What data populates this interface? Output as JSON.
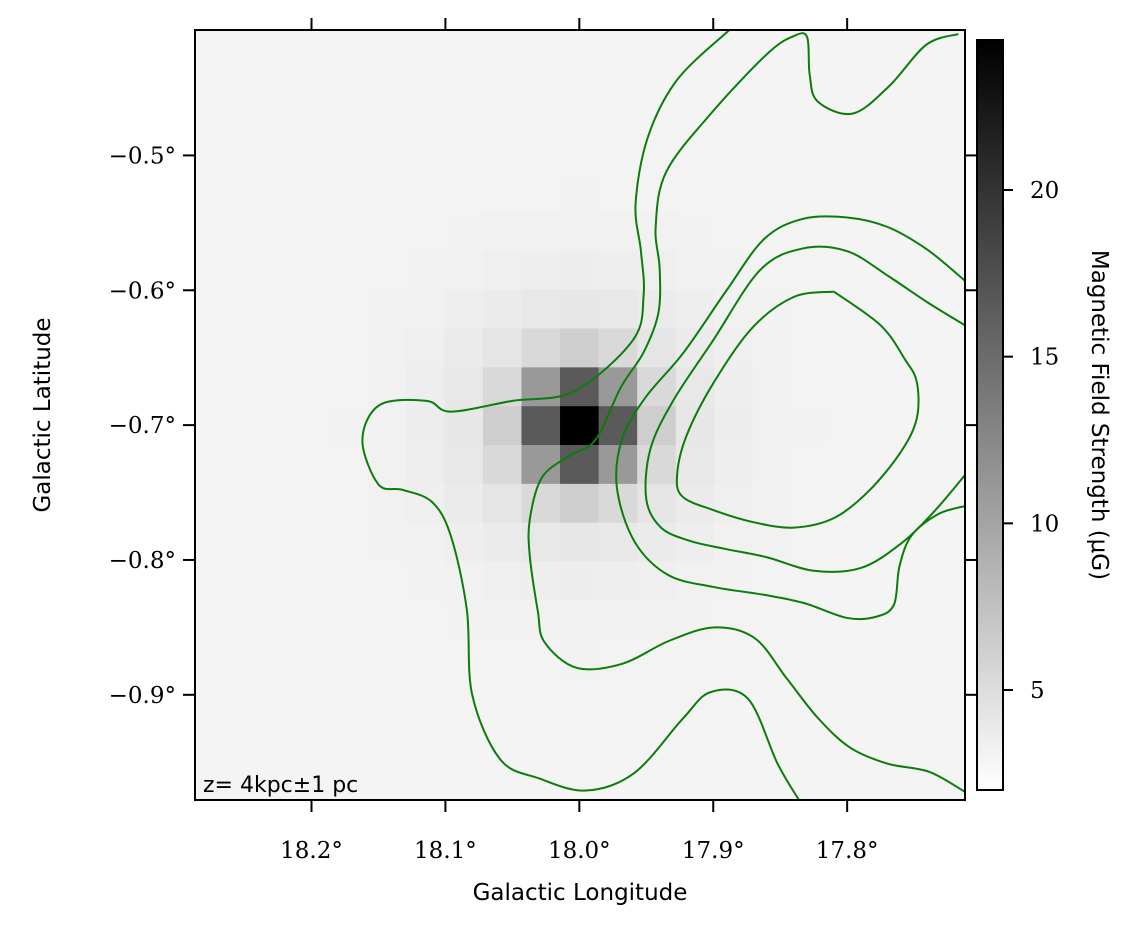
{
  "chart_data": {
    "type": "heatmap",
    "title": "",
    "xlabel": "Galactic Longitude",
    "ylabel": "Galactic Latitude",
    "colorbar_label": "Magnetic Field Strength (μG)",
    "annotation": "z= 4kpc±1 pc",
    "x_ticks": [
      {
        "value": 18.2,
        "label": "18.2°"
      },
      {
        "value": 18.1,
        "label": "18.1°"
      },
      {
        "value": 18.0,
        "label": "18.0°"
      },
      {
        "value": 17.9,
        "label": "17.9°"
      },
      {
        "value": 17.8,
        "label": "17.8°"
      }
    ],
    "y_ticks": [
      {
        "value": -0.5,
        "label": "−0.5°"
      },
      {
        "value": -0.6,
        "label": "−0.6°"
      },
      {
        "value": -0.7,
        "label": "−0.7°"
      },
      {
        "value": -0.8,
        "label": "−0.8°"
      },
      {
        "value": -0.9,
        "label": "−0.9°"
      }
    ],
    "xlim": [
      18.287,
      17.712
    ],
    "ylim": [
      -0.978,
      -0.407
    ],
    "colorbar": {
      "colormap": "gray_r",
      "range": [
        2,
        24.5
      ],
      "ticks": [
        {
          "value": 5,
          "label": "5"
        },
        {
          "value": 10,
          "label": "10"
        },
        {
          "value": 15,
          "label": "15"
        },
        {
          "value": 20,
          "label": "20"
        }
      ]
    },
    "heatmap": {
      "pixel_size_deg": 0.0288,
      "center": {
        "l": 18.0,
        "b": -0.7
      },
      "background": 3.0,
      "peak": 24.5,
      "colors": {
        "contour": "#0a7d0a"
      }
    },
    "contours": [
      {
        "name": "",
        "points": [
          [
            17.888,
            -0.407
          ],
          [
            17.927,
            -0.444
          ],
          [
            17.949,
            -0.487
          ],
          [
            17.958,
            -0.536
          ],
          [
            17.954,
            -0.571
          ],
          [
            17.952,
            -0.604
          ],
          [
            17.96,
            -0.637
          ],
          [
            18.004,
            -0.675
          ],
          [
            18.05,
            -0.682
          ],
          [
            18.096,
            -0.69
          ],
          [
            18.114,
            -0.682
          ],
          [
            18.149,
            -0.685
          ],
          [
            18.162,
            -0.711
          ],
          [
            18.15,
            -0.744
          ],
          [
            18.132,
            -0.748
          ],
          [
            18.11,
            -0.757
          ],
          [
            18.096,
            -0.782
          ],
          [
            18.084,
            -0.837
          ],
          [
            18.08,
            -0.9
          ],
          [
            18.059,
            -0.948
          ],
          [
            18.03,
            -0.962
          ],
          [
            17.995,
            -0.971
          ],
          [
            17.959,
            -0.958
          ],
          [
            17.923,
            -0.918
          ],
          [
            17.902,
            -0.898
          ],
          [
            17.874,
            -0.903
          ],
          [
            17.852,
            -0.951
          ],
          [
            17.836,
            -0.978
          ]
        ]
      },
      {
        "name": "",
        "points": [
          [
            17.717,
            -0.41
          ],
          [
            17.741,
            -0.418
          ],
          [
            17.769,
            -0.449
          ],
          [
            17.796,
            -0.469
          ],
          [
            17.822,
            -0.46
          ],
          [
            17.828,
            -0.44
          ],
          [
            17.83,
            -0.412
          ],
          [
            17.841,
            -0.412
          ],
          [
            17.86,
            -0.425
          ],
          [
            17.9,
            -0.467
          ],
          [
            17.935,
            -0.512
          ],
          [
            17.943,
            -0.553
          ],
          [
            17.94,
            -0.584
          ],
          [
            17.941,
            -0.617
          ],
          [
            17.952,
            -0.646
          ],
          [
            17.969,
            -0.672
          ],
          [
            17.988,
            -0.711
          ],
          [
            18.008,
            -0.723
          ],
          [
            18.028,
            -0.739
          ],
          [
            18.037,
            -0.77
          ],
          [
            18.037,
            -0.797
          ],
          [
            18.031,
            -0.838
          ],
          [
            18.026,
            -0.861
          ],
          [
            18.002,
            -0.88
          ],
          [
            17.968,
            -0.877
          ],
          [
            17.933,
            -0.86
          ],
          [
            17.899,
            -0.85
          ],
          [
            17.869,
            -0.858
          ],
          [
            17.845,
            -0.888
          ],
          [
            17.822,
            -0.917
          ],
          [
            17.798,
            -0.939
          ],
          [
            17.77,
            -0.951
          ],
          [
            17.739,
            -0.957
          ],
          [
            17.712,
            -0.972
          ]
        ]
      },
      {
        "name": "",
        "points": [
          [
            17.712,
            -0.593
          ],
          [
            17.74,
            -0.57
          ],
          [
            17.77,
            -0.553
          ],
          [
            17.8,
            -0.546
          ],
          [
            17.833,
            -0.547
          ],
          [
            17.862,
            -0.562
          ],
          [
            17.89,
            -0.6
          ],
          [
            17.922,
            -0.646
          ],
          [
            17.951,
            -0.68
          ],
          [
            17.968,
            -0.71
          ],
          [
            17.972,
            -0.746
          ],
          [
            17.959,
            -0.786
          ],
          [
            17.934,
            -0.811
          ],
          [
            17.9,
            -0.82
          ],
          [
            17.861,
            -0.826
          ],
          [
            17.832,
            -0.832
          ],
          [
            17.8,
            -0.843
          ],
          [
            17.778,
            -0.842
          ],
          [
            17.765,
            -0.833
          ],
          [
            17.761,
            -0.805
          ],
          [
            17.752,
            -0.782
          ],
          [
            17.732,
            -0.766
          ],
          [
            17.712,
            -0.76
          ]
        ]
      },
      {
        "name": "",
        "points": [
          [
            17.712,
            -0.626
          ],
          [
            17.74,
            -0.609
          ],
          [
            17.77,
            -0.589
          ],
          [
            17.8,
            -0.571
          ],
          [
            17.833,
            -0.569
          ],
          [
            17.865,
            -0.585
          ],
          [
            17.9,
            -0.637
          ],
          [
            17.93,
            -0.682
          ],
          [
            17.947,
            -0.718
          ],
          [
            17.95,
            -0.755
          ],
          [
            17.939,
            -0.776
          ],
          [
            17.917,
            -0.786
          ],
          [
            17.89,
            -0.792
          ],
          [
            17.86,
            -0.798
          ],
          [
            17.825,
            -0.808
          ],
          [
            17.79,
            -0.806
          ],
          [
            17.76,
            -0.788
          ],
          [
            17.735,
            -0.764
          ],
          [
            17.712,
            -0.737
          ]
        ]
      },
      {
        "name": "",
        "points": [
          [
            17.81,
            -0.601
          ],
          [
            17.84,
            -0.605
          ],
          [
            17.871,
            -0.628
          ],
          [
            17.9,
            -0.669
          ],
          [
            17.92,
            -0.708
          ],
          [
            17.927,
            -0.737
          ],
          [
            17.923,
            -0.753
          ],
          [
            17.9,
            -0.763
          ],
          [
            17.87,
            -0.772
          ],
          [
            17.84,
            -0.776
          ],
          [
            17.81,
            -0.769
          ],
          [
            17.784,
            -0.749
          ],
          [
            17.76,
            -0.72
          ],
          [
            17.748,
            -0.695
          ],
          [
            17.748,
            -0.668
          ],
          [
            17.757,
            -0.651
          ],
          [
            17.775,
            -0.626
          ],
          [
            17.81,
            -0.601
          ]
        ]
      }
    ]
  }
}
